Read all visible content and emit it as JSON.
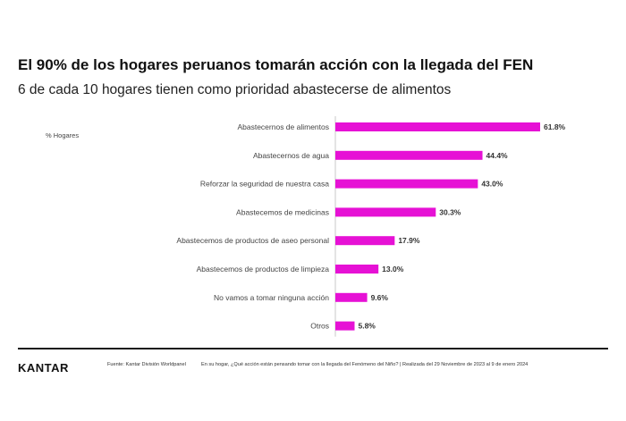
{
  "title": "El 90% de los hogares peruanos tomarán acción con la llegada del FEN",
  "subtitle": "6 de cada 10 hogares tienen como prioridad abastecerse de alimentos",
  "unit_label": "% Hogares",
  "footer": {
    "logo": "KANTAR",
    "source": "Fuente: Kantar División Worldpanel",
    "question": "En su hogar, ¿Qué acción están pensando tomar con la llegada del Fenómeno del Niño? | Realizada del 29 Noviembre de 2023 al 9 de enero 2024"
  },
  "colors": {
    "bar": "#e611d5",
    "axis": "#bbbbbb",
    "footer_line": "#1a1a1a"
  },
  "chart_data": {
    "type": "bar",
    "orientation": "horizontal",
    "categories": [
      "Abastecernos de alimentos",
      "Abastecernos de agua",
      "Reforzar la seguridad de nuestra casa",
      "Abastecemos de medicinas",
      "Abastecemos de productos de aseo personal",
      "Abastecemos de productos de limpieza",
      "No vamos a tomar ninguna acción",
      "Otros"
    ],
    "values": [
      61.8,
      44.4,
      43.0,
      30.3,
      17.9,
      13.0,
      9.6,
      5.8
    ],
    "value_labels": [
      "61.8%",
      "44.4%",
      "43.0%",
      "30.3%",
      "17.9%",
      "13.0%",
      "9.6%",
      "5.8%"
    ],
    "xlim": [
      0,
      61.8
    ],
    "grid": false,
    "legend": "none"
  }
}
